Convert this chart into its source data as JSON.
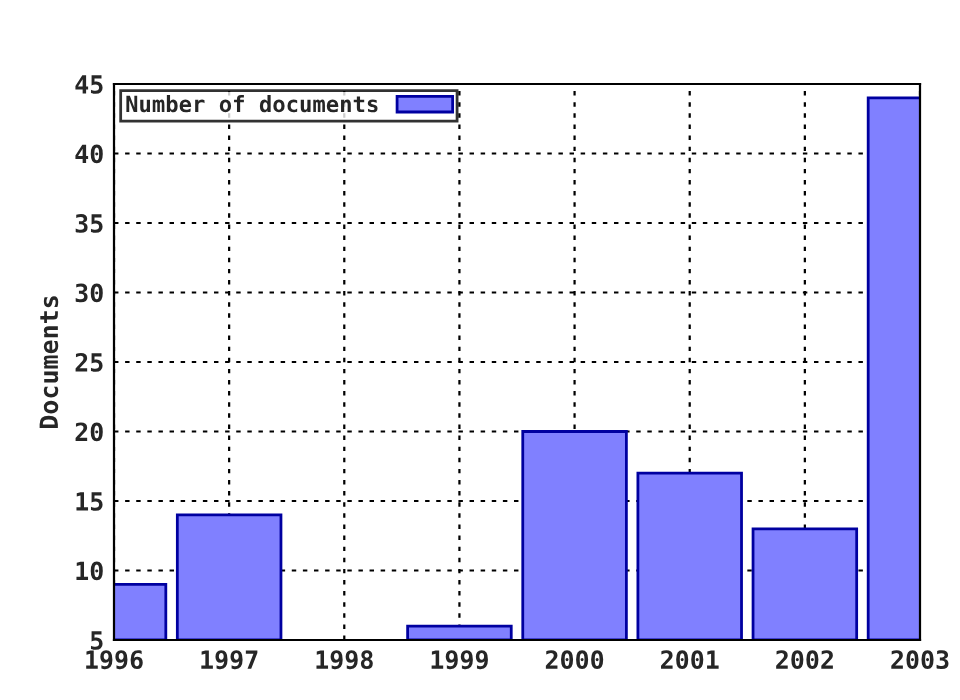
{
  "chart_data": {
    "type": "bar",
    "ylabel": "Documents",
    "x": [
      1996,
      1997,
      1998,
      1999,
      2000,
      2001,
      2002,
      2003
    ],
    "series": [
      {
        "name": "Number of documents",
        "color": "#8080ff",
        "values": [
          9,
          14,
          null,
          6,
          20,
          17,
          13,
          44
        ]
      }
    ],
    "xlim": [
      1996,
      2003
    ],
    "xticks": [
      1996,
      1997,
      1998,
      1999,
      2000,
      2001,
      2002,
      2003
    ],
    "ylim": [
      5,
      45
    ],
    "yticks": [
      5,
      10,
      15,
      20,
      25,
      30,
      35,
      40,
      45
    ],
    "grid": true,
    "legend": "top left"
  }
}
